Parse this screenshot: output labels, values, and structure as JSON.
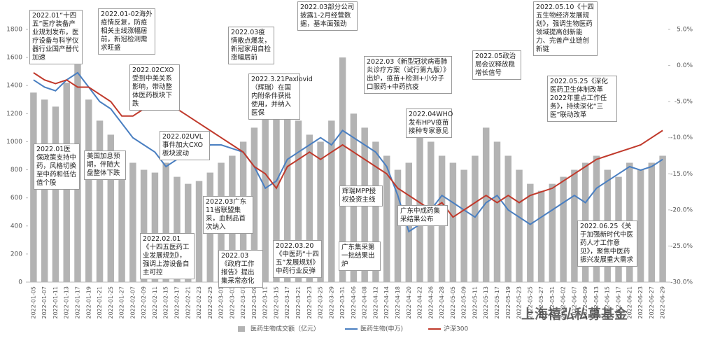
{
  "chart_data": {
    "type": "bar-line",
    "categories": [
      "2022-01-05",
      "2022-01-07",
      "2022-01-11",
      "2022-01-13",
      "2022-01-17",
      "2022-01-19",
      "2022-01-21",
      "2022-01-25",
      "2022-01-27",
      "2022-02-07",
      "2022-02-09",
      "2022-02-11",
      "2022-02-15",
      "2022-02-17",
      "2022-02-21",
      "2022-02-23",
      "2022-02-25",
      "2022-03-01",
      "2022-03-03",
      "2022-03-07",
      "2022-03-09",
      "2022-03-11",
      "2022-03-15",
      "2022-03-17",
      "2022-03-21",
      "2022-03-23",
      "2022-03-25",
      "2022-03-29",
      "2022-03-31",
      "2022-04-06",
      "2022-04-08",
      "2022-04-12",
      "2022-04-14",
      "2022-04-18",
      "2022-04-20",
      "2022-04-22",
      "2022-04-26",
      "2022-04-28",
      "2022-05-05",
      "2022-05-09",
      "2022-05-11",
      "2022-05-13",
      "2022-05-17",
      "2022-05-19",
      "2022-05-23",
      "2022-05-25",
      "2022-05-27",
      "2022-05-31",
      "2022-06-02",
      "2022-06-07",
      "2022-06-09",
      "2022-06-13",
      "2022-06-15",
      "2022-06-17",
      "2022-06-21",
      "2022-06-23",
      "2022-06-27",
      "2022-06-29"
    ],
    "series": [
      {
        "name": "医药生物成交额（亿元）",
        "color": "#b3b3b3",
        "kind": "bar",
        "values": [
          1350,
          1300,
          1250,
          1420,
          1550,
          1300,
          1150,
          1050,
          900,
          850,
          800,
          780,
          850,
          750,
          700,
          720,
          780,
          850,
          900,
          1000,
          1100,
          1200,
          1400,
          1450,
          1150,
          1050,
          1000,
          1150,
          1600,
          1200,
          1100,
          1000,
          900,
          800,
          850,
          1050,
          1000,
          900,
          850,
          800,
          900,
          1100,
          1000,
          900,
          800,
          700,
          650,
          700,
          750,
          800,
          850,
          900,
          800,
          750,
          850,
          800,
          850,
          900
        ]
      },
      {
        "name": "医药生物(申万)",
        "color": "#4a7fc1",
        "kind": "line",
        "axis": "y2",
        "values": [
          -2,
          -3,
          -3.5,
          -2,
          -1,
          -3,
          -5,
          -6,
          -8,
          -10,
          -11,
          -12,
          -14,
          -13,
          -12,
          -12.5,
          -11,
          -11,
          -11.5,
          -12,
          -14,
          -17,
          -16,
          -13,
          -12,
          -11,
          -10,
          -11,
          -9,
          -10,
          -11,
          -12,
          -14,
          -18,
          -23,
          -22,
          -20,
          -18,
          -19,
          -20,
          -21,
          -19,
          -18,
          -20,
          -21,
          -22,
          -21,
          -20,
          -19,
          -18,
          -19,
          -17,
          -16,
          -15,
          -14,
          -14.5,
          -14,
          -13
        ]
      },
      {
        "name": "沪深300",
        "color": "#c0392b",
        "kind": "line",
        "axis": "y2",
        "values": [
          -1,
          -2,
          -2.5,
          -2,
          -3,
          -3,
          -4,
          -5,
          -7,
          -7,
          -6,
          -5,
          -5.5,
          -6,
          -7,
          -8,
          -9,
          -10,
          -11,
          -12,
          -14,
          -15,
          -17,
          -14,
          -13,
          -12,
          -13,
          -12,
          -11,
          -12,
          -13,
          -14,
          -15,
          -17,
          -18,
          -19,
          -20,
          -19,
          -21,
          -20,
          -19,
          -18,
          -19,
          -18,
          -19,
          -18,
          -17.5,
          -17,
          -16,
          -15,
          -14,
          -13,
          -12.5,
          -12,
          -11.5,
          -11,
          -10,
          -9
        ]
      }
    ],
    "ylim": [
      0,
      1800
    ],
    "yticks": [
      0,
      200,
      400,
      600,
      800,
      1000,
      1200,
      1400,
      1600,
      1800
    ],
    "y2lim": [
      -30,
      5
    ],
    "y2ticks": [
      {
        "value": 5,
        "label": "5.0%"
      },
      {
        "value": 0,
        "label": "0.0%"
      },
      {
        "value": -5,
        "label": "-5.0%"
      },
      {
        "value": -10,
        "label": "-10.0%"
      },
      {
        "value": -15,
        "label": "-15.0%"
      },
      {
        "value": -20,
        "label": "-20.0%"
      },
      {
        "value": -25,
        "label": "-25.0%"
      },
      {
        "value": -30,
        "label": "-30.0%"
      }
    ],
    "annotations": [
      "2022.01“十四五”医疗装备产业规划发布，医疗设备与科学仪器行业国产替代加速",
      "2022.01-02海外疫情反复，防疫相关主线涨幅居前，新冠检测需求旺盛",
      "2022.03部分公司披露1-2月经营数据，基本面强劲",
      "2022.05.10《十四五生物经济发展规划》，强调生物医药领域提高创新能力、完善产业链创新链",
      "2022.03疫情散点爆发，新冠家用自检涨幅居前",
      "2022.02CXO受到中美关系影响，带动整体医药板块下跌",
      "2022.3.21Paxlovid（辉瑞）在国内附条件获批使用，并纳入医保",
      "2022.03《新型冠状病毒肺炎诊疗方案（试行第九版）》出炉，疫苗+检测+小分子口服药+中药抗疫",
      "2022.05政治局会议释放稳增长信号",
      "2022.05.25《深化医药卫生体制改革2022年重点工作任务》，持续深化“三医”联动改革",
      "2022.04WHO发布HPV疫苗接种专家意见",
      "2022.02UVL事件加大CXO板块波动",
      "2022.01医保政策支持中药，风格切换至中药和低估值个股",
      "美国加息预期，伴随大盘整体下跌",
      "2022.03广东11省联盟集采，血制品首次纳入",
      "辉瑞MPP授权投资主线",
      "广东中成药集采结果公布",
      "2022.02.01《十四五医药工业发展规划》，强调上游设备自主可控",
      "2022.03《政府工作报告》提出集采常态化",
      "2022.03.20《中医药“十四五”发展规划》中药行业反弹",
      "广东集采第一批结果出炉",
      "2022.06.25《关于加强新时代中医药人才工作意见》，聚焦中医药振兴发展重大需求"
    ],
    "watermark": "上海禧弘私募基金"
  }
}
